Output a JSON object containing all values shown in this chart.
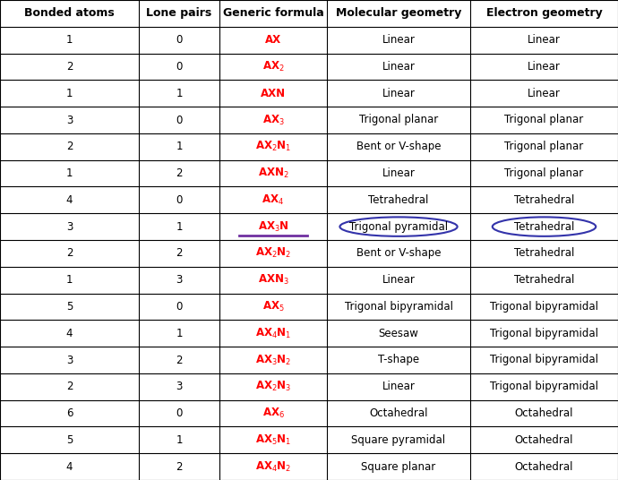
{
  "headers": [
    "Bonded atoms",
    "Lone pairs",
    "Generic formula",
    "Molecular geometry",
    "Electron geometry"
  ],
  "rows": [
    [
      "1",
      "0",
      "AX",
      "Linear",
      "Linear"
    ],
    [
      "2",
      "0",
      "AX$_2$",
      "Linear",
      "Linear"
    ],
    [
      "1",
      "1",
      "AXN",
      "Linear",
      "Linear"
    ],
    [
      "3",
      "0",
      "AX$_3$",
      "Trigonal planar",
      "Trigonal planar"
    ],
    [
      "2",
      "1",
      "AX$_2$N$_1$",
      "Bent or V-shape",
      "Trigonal planar"
    ],
    [
      "1",
      "2",
      "AXN$_2$",
      "Linear",
      "Trigonal planar"
    ],
    [
      "4",
      "0",
      "AX$_4$",
      "Tetrahedral",
      "Tetrahedral"
    ],
    [
      "3",
      "1",
      "AX$_3$N",
      "Trigonal pyramidal",
      "Tetrahedral"
    ],
    [
      "2",
      "2",
      "AX$_2$N$_2$",
      "Bent or V-shape",
      "Tetrahedral"
    ],
    [
      "1",
      "3",
      "AXN$_3$",
      "Linear",
      "Tetrahedral"
    ],
    [
      "5",
      "0",
      "AX$_5$",
      "Trigonal bipyramidal",
      "Trigonal bipyramidal"
    ],
    [
      "4",
      "1",
      "AX$_4$N$_1$",
      "Seesaw",
      "Trigonal bipyramidal"
    ],
    [
      "3",
      "2",
      "AX$_3$N$_2$",
      "T-shape",
      "Trigonal bipyramidal"
    ],
    [
      "2",
      "3",
      "AX$_2$N$_3$",
      "Linear",
      "Trigonal bipyramidal"
    ],
    [
      "6",
      "0",
      "AX$_6$",
      "Octahedral",
      "Octahedral"
    ],
    [
      "5",
      "1",
      "AX$_5$N$_1$",
      "Square pyramidal",
      "Octahedral"
    ],
    [
      "4",
      "2",
      "AX$_4$N$_2$",
      "Square planar",
      "Octahedral"
    ]
  ],
  "highlighted_row": 7,
  "col_boundaries": [
    0.0,
    0.2246,
    0.3551,
    0.529,
    0.7609,
    1.0
  ],
  "header_color": "#000000",
  "formula_color": "#ff0000",
  "underline_color": "#7030a0",
  "circle_color": "#3333aa",
  "background_color": "#ffffff",
  "grid_color": "#000000",
  "font_size": 8.5,
  "header_font_size": 9.0
}
